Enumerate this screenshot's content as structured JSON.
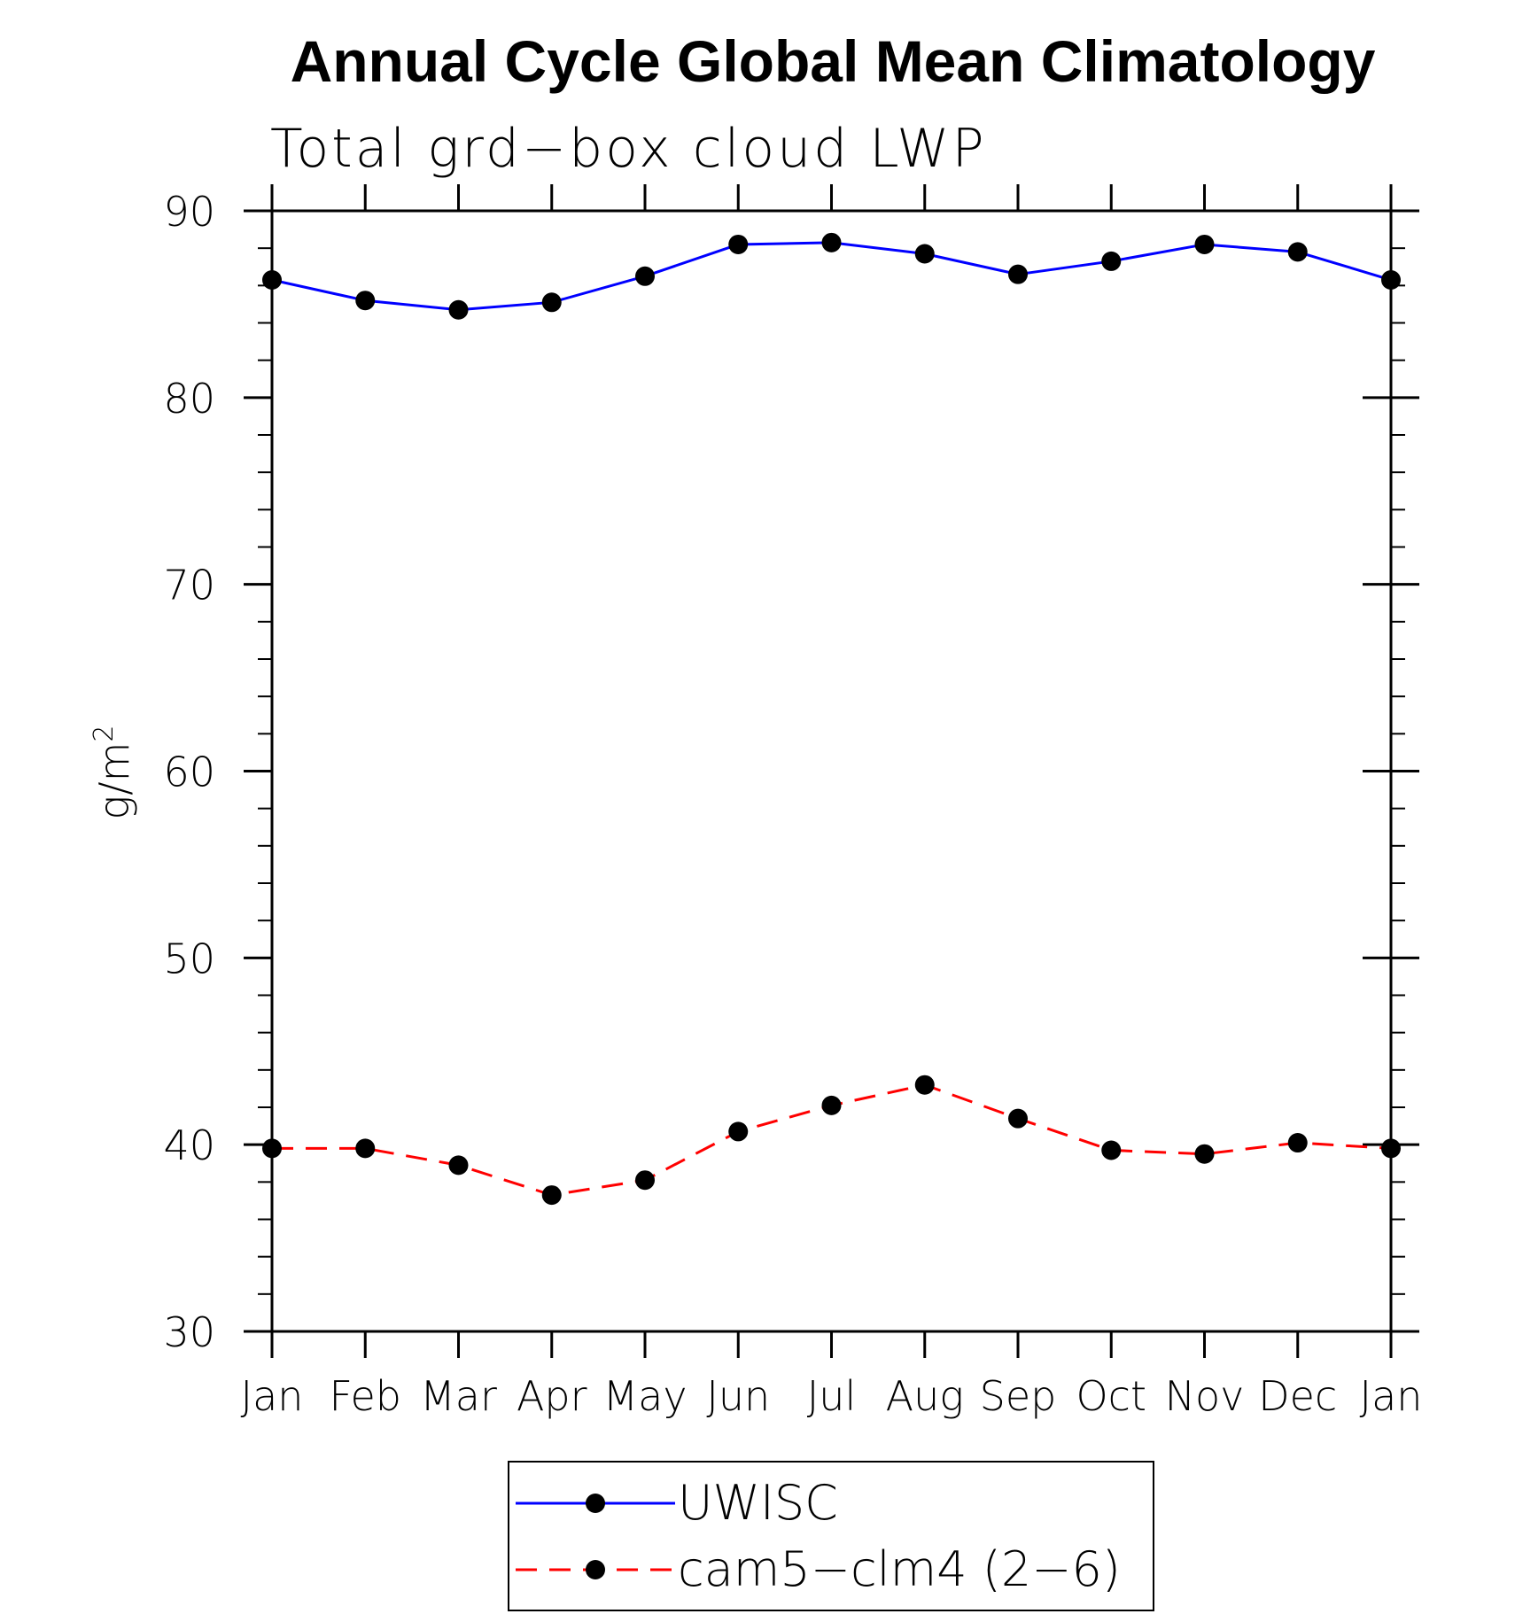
{
  "chart_data": {
    "type": "line",
    "title": "Annual Cycle Global Mean Climatology",
    "subtitle": "Total grd−box cloud LWP",
    "xlabel": "",
    "ylabel": "g/m",
    "ylabel_superscript": "2",
    "categories": [
      "Jan",
      "Feb",
      "Mar",
      "Apr",
      "May",
      "Jun",
      "Jul",
      "Aug",
      "Sep",
      "Oct",
      "Nov",
      "Dec",
      "Jan"
    ],
    "ylim": [
      30,
      90
    ],
    "yticks": [
      30,
      40,
      50,
      60,
      70,
      80,
      90
    ],
    "y_minor_step": 2,
    "grid": false,
    "legend_position": "bottom-center",
    "series": [
      {
        "name": "UWISC",
        "color": "#0000ff",
        "line_style": "solid",
        "marker": "filled-circle",
        "values": [
          86.3,
          85.2,
          84.7,
          85.1,
          86.5,
          88.2,
          88.3,
          87.7,
          86.6,
          87.3,
          88.2,
          87.8,
          86.3
        ]
      },
      {
        "name": "cam5−clm4 (2−6)",
        "color": "#ff0000",
        "line_style": "dashed",
        "marker": "filled-circle",
        "values": [
          39.8,
          39.8,
          38.9,
          37.3,
          38.1,
          40.7,
          42.1,
          43.2,
          41.4,
          39.7,
          39.5,
          40.1,
          39.8
        ]
      }
    ]
  }
}
